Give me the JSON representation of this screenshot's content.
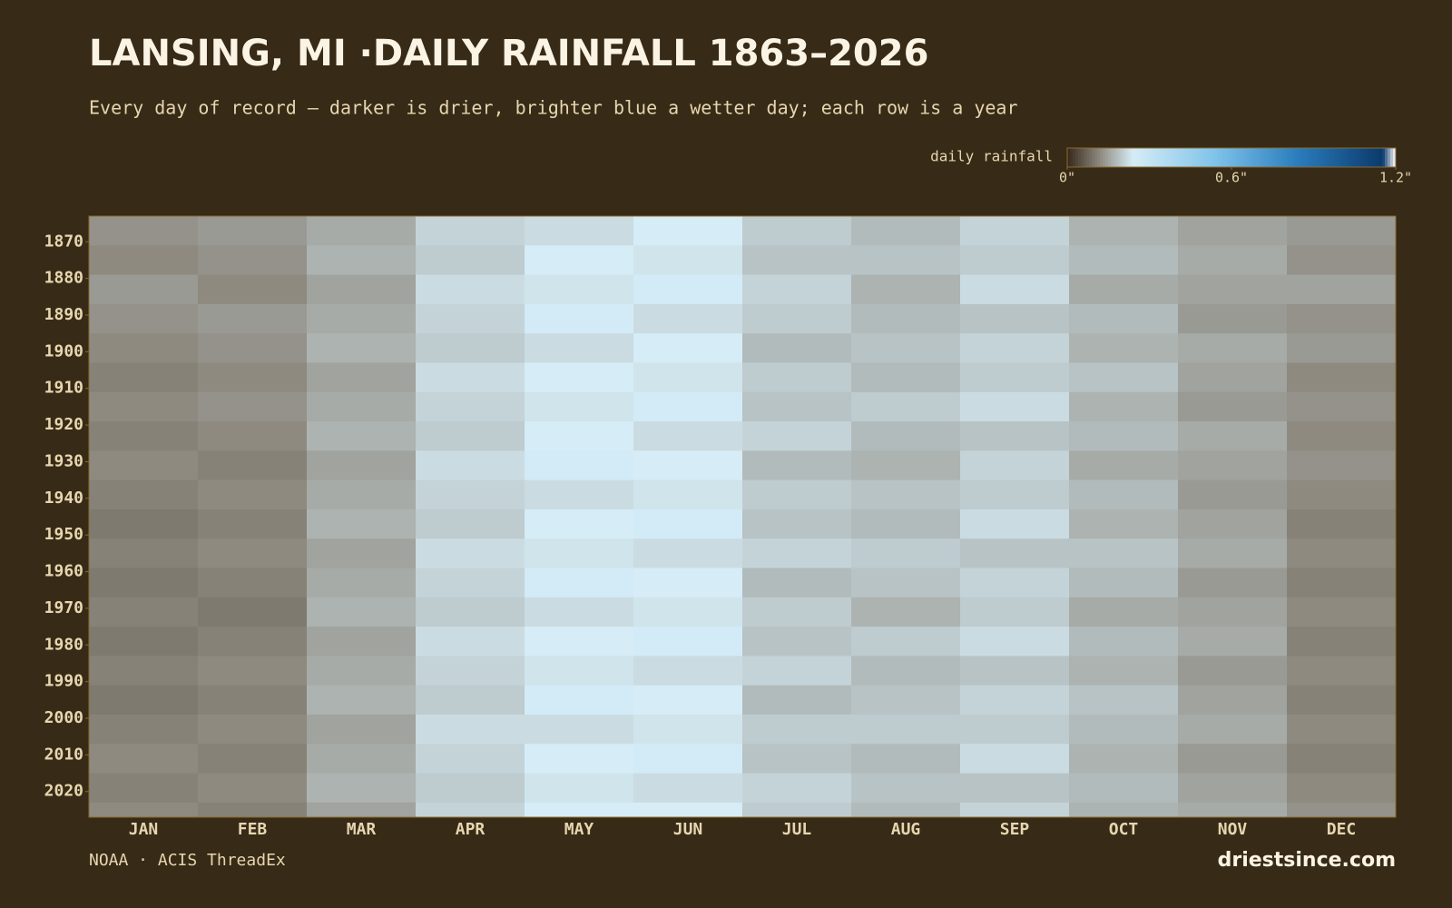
{
  "chart_data": {
    "type": "heatmap",
    "title": "LANSING, MI ·DAILY RAINFALL 1863–2026",
    "subtitle": "Every day of record — darker is drier, brighter blue a wetter day; each row is a year",
    "source": "NOAA · ACIS ThreadEx",
    "brand": "driestsince.com",
    "colorbar_label": "daily rainfall",
    "categories": [
      "JAN",
      "FEB",
      "MAR",
      "APR",
      "MAY",
      "JUN",
      "JUL",
      "AUG",
      "SEP",
      "OCT",
      "NOV",
      "DEC"
    ],
    "y": [
      1863,
      1871,
      1879,
      1887,
      1895,
      1903,
      1911,
      1919,
      1927,
      1935,
      1943,
      1951,
      1959,
      1967,
      1975,
      1983,
      1991,
      1999,
      2007,
      2015,
      2023
    ],
    "ylim": [
      1863,
      2027
    ],
    "yticks": [
      1870,
      1880,
      1890,
      1900,
      1910,
      1920,
      1930,
      1940,
      1950,
      1960,
      1970,
      1980,
      1990,
      2000,
      2010,
      2020
    ],
    "zlim": [
      0,
      1.2
    ],
    "zticks": [
      {
        "value": 0,
        "label": "0\""
      },
      {
        "value": 0.6,
        "label": "0.6\""
      },
      {
        "value": 1.2,
        "label": "1.2\""
      }
    ],
    "colorscale": [
      [
        0,
        "#36291a"
      ],
      [
        0.1,
        "#8e8a80"
      ],
      [
        0.2,
        "#d6ecf6"
      ],
      [
        0.45,
        "#7fc3ea"
      ],
      [
        0.7,
        "#2b7dbd"
      ],
      [
        0.96,
        "#0b3a6c"
      ],
      [
        1,
        "#ffffff"
      ]
    ],
    "z": [
      [
        0.13,
        0.14,
        0.16,
        0.21,
        0.22,
        0.24,
        0.2,
        0.18,
        0.21,
        0.17,
        0.15,
        0.14
      ],
      [
        0.12,
        0.13,
        0.17,
        0.2,
        0.24,
        0.23,
        0.19,
        0.19,
        0.2,
        0.18,
        0.16,
        0.13
      ],
      [
        0.14,
        0.12,
        0.15,
        0.22,
        0.23,
        0.25,
        0.21,
        0.17,
        0.22,
        0.16,
        0.15,
        0.15
      ],
      [
        0.13,
        0.14,
        0.16,
        0.21,
        0.25,
        0.22,
        0.2,
        0.18,
        0.19,
        0.18,
        0.14,
        0.13
      ],
      [
        0.12,
        0.13,
        0.17,
        0.2,
        0.22,
        0.24,
        0.18,
        0.19,
        0.21,
        0.17,
        0.16,
        0.14
      ],
      [
        0.11,
        0.12,
        0.15,
        0.22,
        0.24,
        0.23,
        0.2,
        0.18,
        0.2,
        0.19,
        0.15,
        0.12
      ],
      [
        0.12,
        0.13,
        0.16,
        0.21,
        0.23,
        0.25,
        0.19,
        0.2,
        0.22,
        0.17,
        0.14,
        0.13
      ],
      [
        0.11,
        0.12,
        0.17,
        0.2,
        0.24,
        0.22,
        0.21,
        0.18,
        0.19,
        0.18,
        0.16,
        0.12
      ],
      [
        0.12,
        0.11,
        0.15,
        0.22,
        0.25,
        0.24,
        0.18,
        0.17,
        0.21,
        0.16,
        0.15,
        0.13
      ],
      [
        0.11,
        0.12,
        0.16,
        0.21,
        0.22,
        0.23,
        0.2,
        0.19,
        0.2,
        0.18,
        0.14,
        0.12
      ],
      [
        0.1,
        0.11,
        0.17,
        0.2,
        0.24,
        0.25,
        0.19,
        0.18,
        0.22,
        0.17,
        0.15,
        0.11
      ],
      [
        0.11,
        0.12,
        0.15,
        0.22,
        0.23,
        0.22,
        0.21,
        0.2,
        0.19,
        0.19,
        0.16,
        0.12
      ],
      [
        0.1,
        0.11,
        0.16,
        0.21,
        0.25,
        0.24,
        0.18,
        0.19,
        0.21,
        0.18,
        0.14,
        0.11
      ],
      [
        0.11,
        0.1,
        0.17,
        0.2,
        0.22,
        0.23,
        0.2,
        0.17,
        0.2,
        0.16,
        0.15,
        0.12
      ],
      [
        0.1,
        0.11,
        0.15,
        0.22,
        0.24,
        0.25,
        0.19,
        0.2,
        0.22,
        0.18,
        0.16,
        0.11
      ],
      [
        0.11,
        0.12,
        0.16,
        0.21,
        0.23,
        0.22,
        0.21,
        0.18,
        0.19,
        0.17,
        0.14,
        0.12
      ],
      [
        0.1,
        0.11,
        0.17,
        0.2,
        0.25,
        0.24,
        0.18,
        0.19,
        0.21,
        0.19,
        0.15,
        0.11
      ],
      [
        0.11,
        0.12,
        0.15,
        0.22,
        0.22,
        0.23,
        0.2,
        0.2,
        0.2,
        0.18,
        0.16,
        0.12
      ],
      [
        0.12,
        0.11,
        0.16,
        0.21,
        0.24,
        0.25,
        0.19,
        0.18,
        0.22,
        0.17,
        0.14,
        0.11
      ],
      [
        0.11,
        0.12,
        0.17,
        0.2,
        0.23,
        0.22,
        0.21,
        0.19,
        0.19,
        0.18,
        0.15,
        0.12
      ],
      [
        0.12,
        0.11,
        0.15,
        0.21,
        0.24,
        0.24,
        0.2,
        0.18,
        0.21,
        0.17,
        0.16,
        0.13
      ]
    ]
  }
}
